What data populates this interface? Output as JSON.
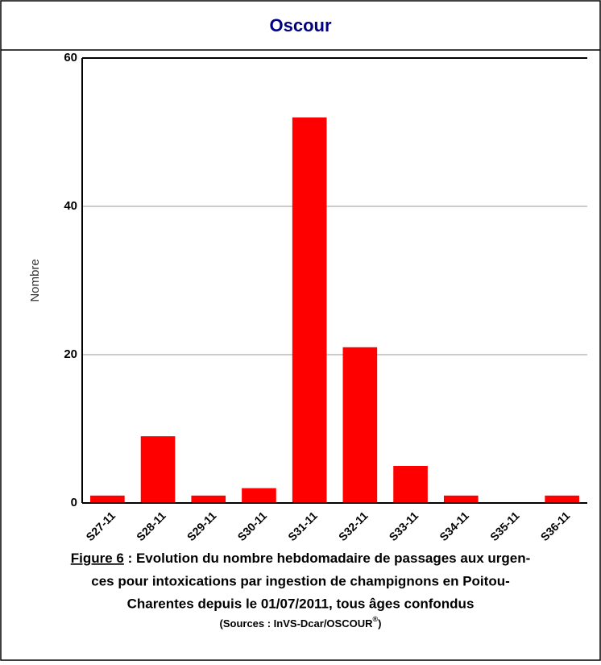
{
  "chart_data": {
    "type": "bar",
    "title": "Oscour",
    "y_label": "Nombre",
    "categories": [
      "S27-11",
      "S28-11",
      "S29-11",
      "S30-11",
      "S31-11",
      "S32-11",
      "S33-11",
      "S34-11",
      "S35-11",
      "S36-11"
    ],
    "values": [
      1,
      9,
      1,
      2,
      52,
      21,
      5,
      1,
      0,
      1
    ],
    "color": "#ff0000",
    "ylim": [
      0,
      60
    ],
    "yticks": [
      0,
      20,
      40,
      60
    ],
    "grid": true,
    "caption": {
      "figure_label": "Figure 6",
      "lines": [
        " : Evolution du nombre hebdomadaire de passages aux urgen-",
        "ces pour intoxications par ingestion de champignons en Poitou-",
        "Charentes depuis le 01/07/2011, tous âges confondus"
      ],
      "source": "(Sources : InVS-Dcar/OSCOUR",
      "source_mark": "®",
      "source_end": ")"
    }
  }
}
